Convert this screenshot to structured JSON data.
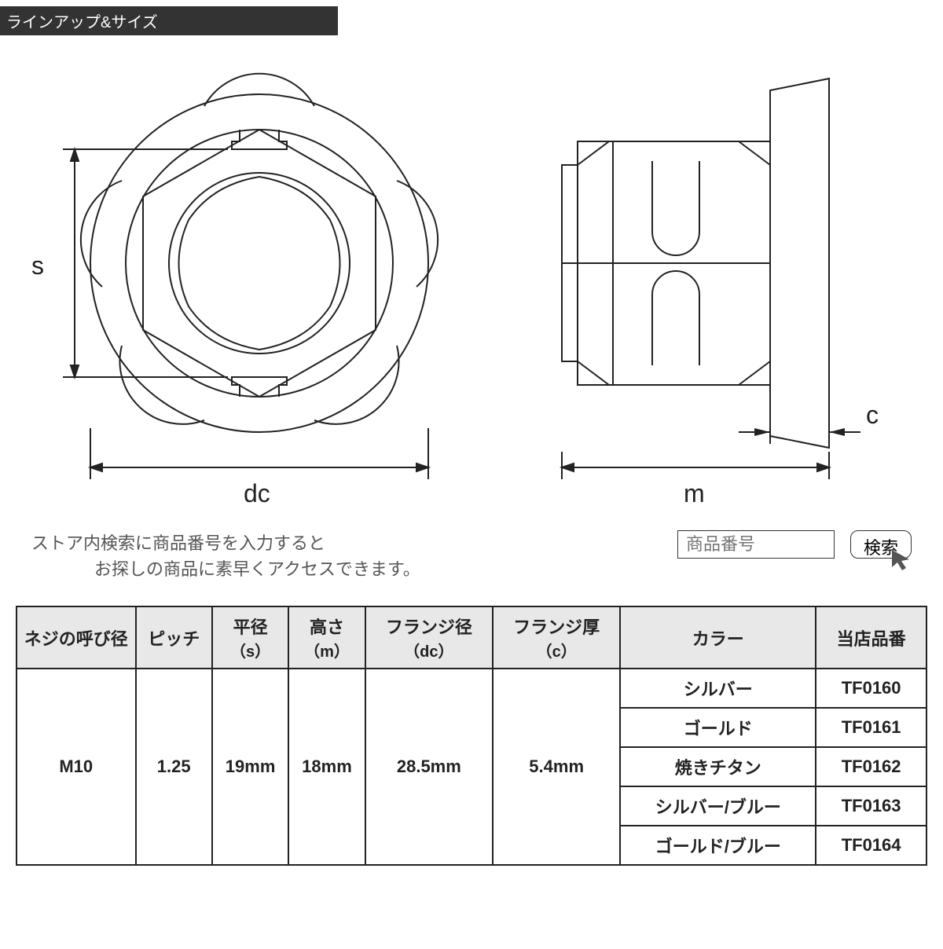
{
  "header": {
    "title": "ラインアップ&サイズ"
  },
  "diagram": {
    "labels": {
      "s": "s",
      "dc": "dc",
      "m": "m",
      "c": "c"
    },
    "stroke_color": "#222222",
    "stroke_width": 2,
    "background": "#ffffff"
  },
  "search": {
    "instruction_line1": "ストア内検索に商品番号を入力すると",
    "instruction_line2": "お探しの商品に素早くアクセスできます。",
    "placeholder": "商品番号",
    "button_label": "検索"
  },
  "table": {
    "header_bg": "#e8e8e8",
    "border_color": "#222222",
    "columns": [
      {
        "label": "ネジの呼び径",
        "sub": ""
      },
      {
        "label": "ピッチ",
        "sub": ""
      },
      {
        "label": "平径",
        "sub": "（s）"
      },
      {
        "label": "高さ",
        "sub": "（m）"
      },
      {
        "label": "フランジ径",
        "sub": "（dc）"
      },
      {
        "label": "フランジ厚",
        "sub": "（c）"
      },
      {
        "label": "カラー",
        "sub": ""
      },
      {
        "label": "当店品番",
        "sub": ""
      }
    ],
    "shared": {
      "nominal": "M10",
      "pitch": "1.25",
      "s": "19mm",
      "m": "18mm",
      "dc": "28.5mm",
      "c": "5.4mm"
    },
    "variants": [
      {
        "color": "シルバー",
        "part": "TF0160"
      },
      {
        "color": "ゴールド",
        "part": "TF0161"
      },
      {
        "color": "焼きチタン",
        "part": "TF0162"
      },
      {
        "color": "シルバー/ブルー",
        "part": "TF0163"
      },
      {
        "color": "ゴールド/ブルー",
        "part": "TF0164"
      }
    ]
  }
}
